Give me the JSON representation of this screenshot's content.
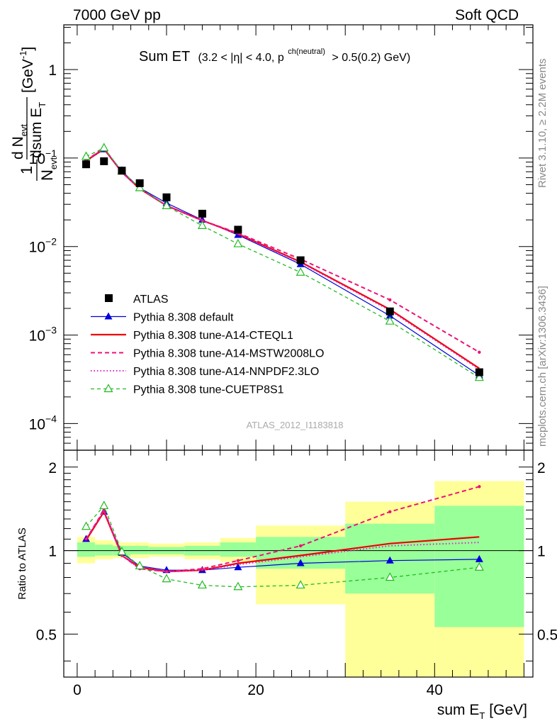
{
  "header": {
    "left": "7000 GeV pp",
    "right": "Soft QCD"
  },
  "side_text": {
    "rivet": "Rivet 3.1.10, ≥ 2.2M events",
    "mcplots": "mcplots.cern.ch [arXiv:1306.3436]"
  },
  "watermark": "ATLAS_2012_I1183818",
  "colors": {
    "default": "#0000dd",
    "cteql1": "#ee0000",
    "mstw": "#ee1177",
    "nnpdf": "#dd22cc",
    "cuetp8s1": "#22bb22",
    "band_inner": "#99ff99",
    "band_outer": "#ffff99"
  },
  "chart_data": [
    {
      "type": "scatter",
      "panel": "main",
      "title": {
        "main": "Sum ET",
        "cut_a": "(3.2 < |η| < 4.0, p",
        "cut_sup": "ch(neutral)",
        "cut_b": "> 0.5(0.2) GeV)"
      },
      "ylabel": {
        "one": "1",
        "n": "N",
        "n_sub": "evt",
        "dn": "d N",
        "dn_sub": "evt",
        "dsum": "dsum E",
        "dsum_sub": "T",
        "unit": "[GeV",
        "unit_sup": "-1",
        "unit_end": "]"
      },
      "yscale": "log",
      "ylim": [
        5e-05,
        3.2
      ],
      "y_ticks": [
        {
          "value": 1,
          "base": "1",
          "exp": ""
        },
        {
          "value": 0.1,
          "base": "10",
          "exp": "−1"
        },
        {
          "value": 0.01,
          "base": "10",
          "exp": "−2"
        },
        {
          "value": 0.001,
          "base": "10",
          "exp": "−3"
        },
        {
          "value": 0.0001,
          "base": "10",
          "exp": "−4"
        }
      ],
      "x": [
        1,
        3,
        5,
        7,
        10,
        14,
        18,
        25,
        35,
        45
      ],
      "data": {
        "name": "ATLAS",
        "values": [
          0.085,
          0.092,
          0.072,
          0.052,
          0.036,
          0.0235,
          0.0155,
          0.007,
          0.00185,
          0.00038
        ]
      },
      "series": [
        {
          "name": "Pythia 8.308 default",
          "key": "default",
          "style": "solid-triangle",
          "values": [
            0.092,
            0.125,
            0.071,
            0.046,
            0.031,
            0.02,
            0.0135,
            0.0063,
            0.00165,
            0.00035
          ]
        },
        {
          "name": "Pythia 8.308 tune-A14-CTEQL1",
          "key": "cteql1",
          "style": "solid-thick",
          "values": [
            0.093,
            0.127,
            0.069,
            0.045,
            0.029,
            0.0197,
            0.0139,
            0.0067,
            0.00195,
            0.00042
          ]
        },
        {
          "name": "Pythia 8.308 tune-A14-MSTW2008LO",
          "key": "mstw",
          "style": "dashed-dot",
          "values": [
            0.094,
            0.13,
            0.069,
            0.045,
            0.029,
            0.0197,
            0.0142,
            0.0072,
            0.0025,
            0.00064
          ]
        },
        {
          "name": "Pythia 8.308 tune-A14-NNPDF2.3LO",
          "key": "nnpdf",
          "style": "dotted",
          "values": [
            0.094,
            0.128,
            0.069,
            0.045,
            0.029,
            0.0197,
            0.0138,
            0.0066,
            0.0019,
            0.00041
          ]
        },
        {
          "name": "Pythia 8.308 tune-CUETP8S1",
          "key": "cuetp8s1",
          "style": "dashed-open-triangle",
          "values": [
            0.104,
            0.13,
            0.071,
            0.046,
            0.0288,
            0.0172,
            0.0107,
            0.0051,
            0.00143,
            0.00033
          ]
        }
      ],
      "legend_position": "left-lower"
    },
    {
      "type": "scatter",
      "panel": "ratio",
      "ylabel": "Ratio to ATLAS",
      "xlabel": {
        "base": "sum E",
        "sub": "T",
        "unit": "[GeV]"
      },
      "xlim": [
        -1.5,
        51
      ],
      "ylim": [
        0.35,
        2.3
      ],
      "x_ticks": [
        0,
        20,
        40
      ],
      "y_ticks": [
        0.5,
        1,
        2
      ],
      "bands": [
        {
          "lo": 0,
          "hi": 2,
          "inner": [
            0.95,
            1.07
          ],
          "outer": [
            0.9,
            1.12
          ]
        },
        {
          "lo": 2,
          "hi": 4,
          "inner": [
            0.96,
            1.05
          ],
          "outer": [
            0.93,
            1.09
          ]
        },
        {
          "lo": 4,
          "hi": 6,
          "inner": [
            0.96,
            1.04
          ],
          "outer": [
            0.94,
            1.07
          ]
        },
        {
          "lo": 6,
          "hi": 8,
          "inner": [
            0.97,
            1.04
          ],
          "outer": [
            0.94,
            1.07
          ]
        },
        {
          "lo": 8,
          "hi": 12,
          "inner": [
            0.97,
            1.03
          ],
          "outer": [
            0.95,
            1.06
          ]
        },
        {
          "lo": 12,
          "hi": 16,
          "inner": [
            0.96,
            1.04
          ],
          "outer": [
            0.93,
            1.07
          ]
        },
        {
          "lo": 16,
          "hi": 20,
          "inner": [
            0.95,
            1.07
          ],
          "outer": [
            0.91,
            1.11
          ]
        },
        {
          "lo": 20,
          "hi": 30,
          "inner": [
            0.86,
            1.12
          ],
          "outer": [
            0.64,
            1.23
          ]
        },
        {
          "lo": 30,
          "hi": 40,
          "inner": [
            0.7,
            1.25
          ],
          "outer": [
            0.35,
            1.5
          ]
        },
        {
          "lo": 40,
          "hi": 50,
          "inner": [
            0.53,
            1.45
          ],
          "outer": [
            0.35,
            1.78
          ]
        }
      ],
      "x": [
        1,
        3,
        5,
        7,
        10,
        14,
        18,
        25,
        35,
        45
      ],
      "series": [
        {
          "name": "Pythia 8.308 default",
          "key": "default",
          "style": "solid-triangle",
          "values": [
            1.1,
            1.38,
            0.98,
            0.88,
            0.85,
            0.85,
            0.87,
            0.9,
            0.92,
            0.93
          ]
        },
        {
          "name": "Pythia 8.308 tune-A14-CTEQL1",
          "key": "cteql1",
          "style": "solid-thick",
          "values": [
            1.09,
            1.38,
            0.96,
            0.87,
            0.84,
            0.85,
            0.9,
            0.96,
            1.06,
            1.12
          ]
        },
        {
          "name": "Pythia 8.308 tune-A14-MSTW2008LO",
          "key": "mstw",
          "style": "dashed-dot",
          "values": [
            1.1,
            1.4,
            0.96,
            0.86,
            0.84,
            0.86,
            0.92,
            1.04,
            1.38,
            1.7
          ]
        },
        {
          "name": "Pythia 8.308 tune-A14-NNPDF2.3LO",
          "key": "nnpdf",
          "style": "dotted",
          "values": [
            1.1,
            1.39,
            0.96,
            0.86,
            0.84,
            0.85,
            0.89,
            0.95,
            1.04,
            1.07
          ]
        },
        {
          "name": "Pythia 8.308 tune-CUETP8S1",
          "key": "cuetp8s1",
          "style": "dashed-open-triangle",
          "values": [
            1.22,
            1.45,
            0.99,
            0.88,
            0.79,
            0.75,
            0.74,
            0.75,
            0.8,
            0.87
          ]
        }
      ]
    }
  ]
}
